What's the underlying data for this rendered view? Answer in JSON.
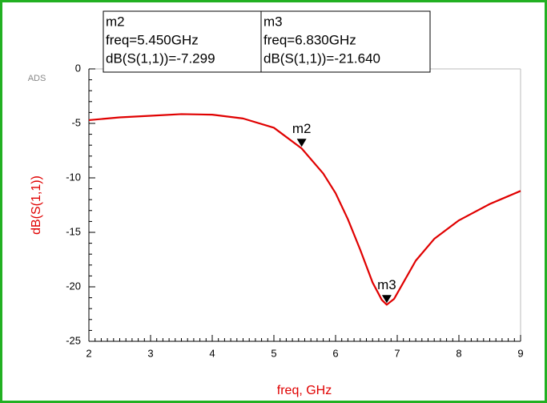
{
  "chart_data": {
    "type": "line",
    "watermark": "ADS",
    "x_label": "freq, GHz",
    "y_label": "dB(S(1,1))",
    "xlim": [
      2,
      9
    ],
    "xticks": [
      2,
      3,
      4,
      5,
      6,
      7,
      8,
      9
    ],
    "ylim": [
      -25,
      0
    ],
    "yticks": [
      0,
      -5,
      -10,
      -15,
      -20,
      -25
    ],
    "series": [
      {
        "name": "dB(S(1,1))",
        "color": "#e00000",
        "x": [
          2,
          2.5,
          3,
          3.5,
          4,
          4.5,
          5,
          5.45,
          5.8,
          6,
          6.2,
          6.4,
          6.6,
          6.75,
          6.83,
          6.95,
          7.1,
          7.3,
          7.6,
          8,
          8.5,
          9
        ],
        "values": [
          -4.7,
          -4.45,
          -4.3,
          -4.15,
          -4.2,
          -4.55,
          -5.4,
          -7.299,
          -9.6,
          -11.4,
          -13.8,
          -16.6,
          -19.6,
          -21.2,
          -21.64,
          -21.1,
          -19.6,
          -17.6,
          -15.6,
          -13.9,
          -12.4,
          -11.2
        ]
      }
    ],
    "markers": [
      {
        "name": "m2",
        "x": 5.45,
        "y": -7.299,
        "lines": [
          "m2",
          "freq=5.450GHz",
          "dB(S(1,1))=-7.299"
        ]
      },
      {
        "name": "m3",
        "x": 6.83,
        "y": -21.64,
        "lines": [
          "m3",
          "freq=6.830GHz",
          "dB(S(1,1))=-21.640"
        ]
      }
    ]
  }
}
